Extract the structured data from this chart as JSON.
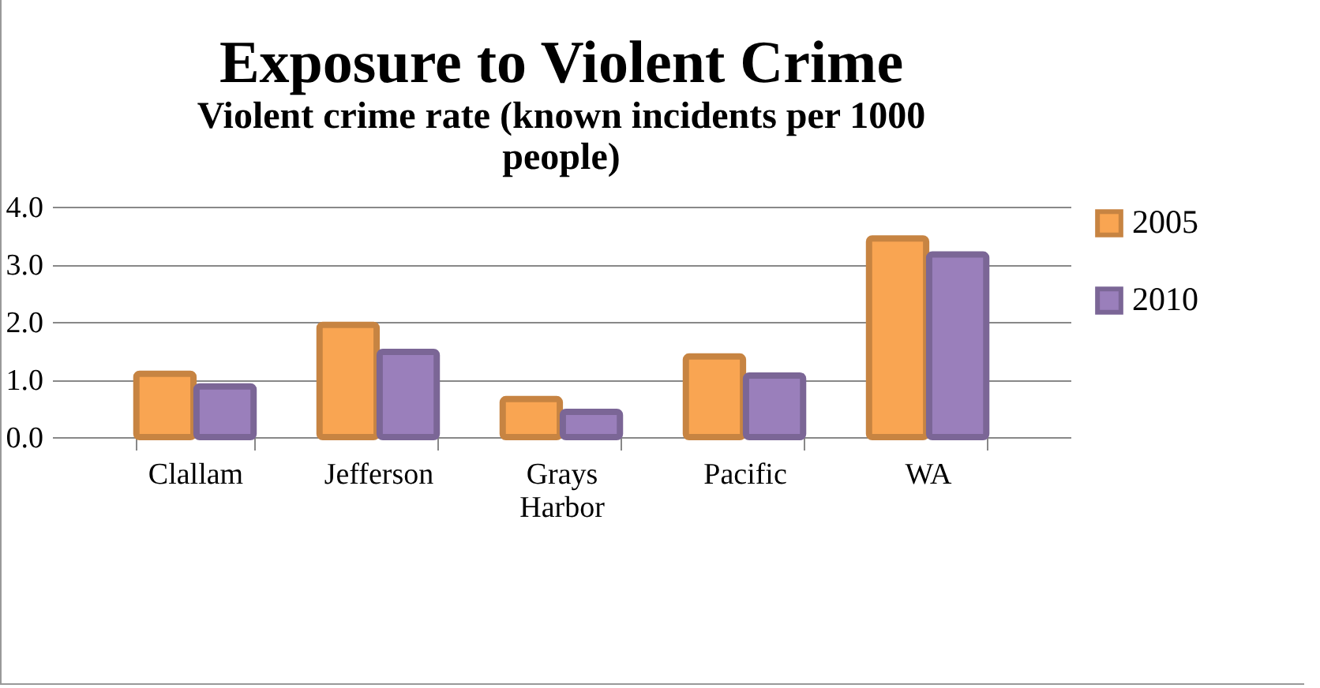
{
  "chart_data": {
    "type": "bar",
    "title": "Exposure to Violent Crime",
    "subtitle": "Violent crime rate (known incidents per 1000 people)",
    "categories": [
      "Clallam",
      "Jefferson",
      "Grays Harbor",
      "Pacific",
      "WA"
    ],
    "series": [
      {
        "name": "2005",
        "color": "#f9a552",
        "values": [
          1.1,
          1.95,
          0.66,
          1.4,
          3.45
        ]
      },
      {
        "name": "2010",
        "color": "#9a7fbb",
        "values": [
          0.88,
          1.48,
          0.44,
          1.07,
          3.17
        ]
      }
    ],
    "ylim": [
      0,
      4
    ],
    "yticks": [
      {
        "value": 0,
        "label": "0.0"
      },
      {
        "value": 1,
        "label": "1.0"
      },
      {
        "value": 2,
        "label": "2.0"
      },
      {
        "value": 3,
        "label": "3.0"
      },
      {
        "value": 4,
        "label": "4.0"
      }
    ],
    "grid": "y",
    "legend": "right"
  }
}
